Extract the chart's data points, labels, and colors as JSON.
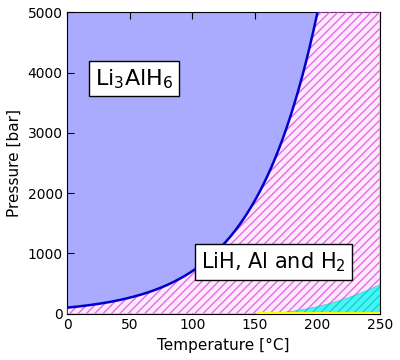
{
  "xlabel": "Temperature [°C]",
  "ylabel": "Pressure [bar]",
  "xlim": [
    0,
    250
  ],
  "ylim": [
    0,
    5000
  ],
  "xticks": [
    0,
    50,
    100,
    150,
    200,
    250
  ],
  "yticks": [
    0,
    1000,
    2000,
    3000,
    4000,
    5000
  ],
  "curve_color": "#0000cc",
  "region1_color": "#aaaaff",
  "region2_hatch_color": "#dd66dd",
  "region3_color": "#00dddd",
  "region4_color": "#ffff00",
  "label1": "Li$_3$AlH$_6$",
  "label2": "LiH, Al and H$_2$",
  "bg_color": "#ffffff",
  "curve_linewidth": 1.8,
  "label1_fontsize": 16,
  "label2_fontsize": 15,
  "curve_A": 100.0,
  "curve_B": 0.0204,
  "T_max": 250,
  "P_max": 5000,
  "cyan_T0": 152.0,
  "cyan_T1": 250.0,
  "cyan_P1": 480.0,
  "yellow_height": 20.0
}
